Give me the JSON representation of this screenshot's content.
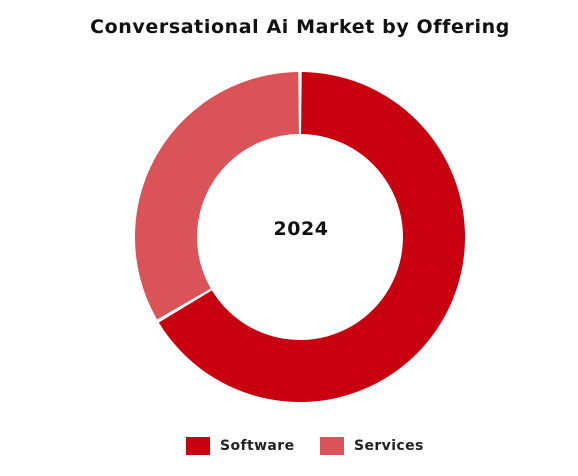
{
  "chart_data": {
    "type": "pie",
    "title": "Conversational Ai Market by Offering",
    "center_label": "2024",
    "categories": [
      "Software",
      "Services"
    ],
    "values": [
      66.5,
      33.5
    ],
    "colors": [
      "#c8000f",
      "#d95358"
    ],
    "legend": "bottom"
  }
}
